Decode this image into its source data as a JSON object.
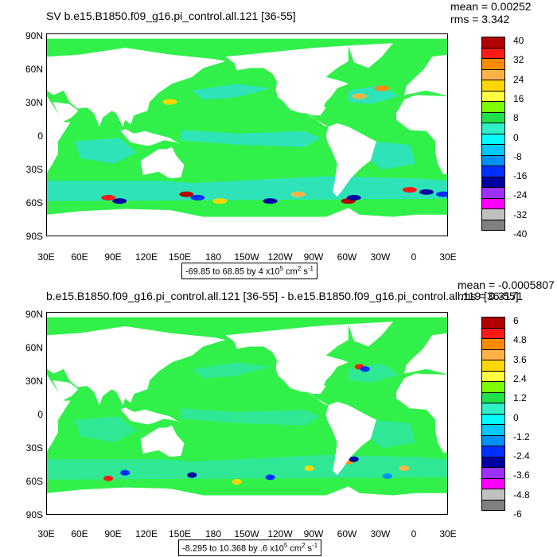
{
  "panels": [
    {
      "title": "SV b.e15.B1850.f09_g16.pi_control.all.121 [36-55]",
      "mean_label": "mean = 0.00252",
      "rms_label": "rms = 3.342",
      "range_prefix": "-69.85 to 68.85 by 4 x10",
      "range_units": "cm",
      "range_exp": "5",
      "range_units_exp": "2",
      "range_tail": "s",
      "range_tail_exp": "-1",
      "colorbar_labels": [
        "40",
        "32",
        "24",
        "16",
        "8",
        "0",
        "-8",
        "-16",
        "-24",
        "-32",
        "-40"
      ]
    },
    {
      "title": "b.e15.B1850.f09_g16.pi_control.all.121 [36-55] - b.e15.B1850.f09_g16.pi_control.all.119 [36-55]",
      "mean_label": "mean = -0.0005807",
      "rms_label": "rms = 0.3171",
      "range_prefix": "-8.295 to 10.368 by .6 x10",
      "range_units": "cm",
      "range_exp": "5",
      "range_units_exp": "2",
      "range_tail": "s",
      "range_tail_exp": "-1",
      "colorbar_labels": [
        "6",
        "4.8",
        "3.6",
        "2.4",
        "1.2",
        "0",
        "-1.2",
        "-2.4",
        "-3.6",
        "-4.8",
        "-6"
      ]
    }
  ],
  "lat_labels": [
    "90N",
    "60N",
    "30N",
    "0",
    "30S",
    "60S",
    "90S"
  ],
  "lon_labels": [
    "30E",
    "60E",
    "90E",
    "120E",
    "150E",
    "180",
    "150W",
    "120W",
    "90W",
    "60W",
    "30W",
    "0",
    "30E"
  ],
  "colors": {
    "ocean_main": "#31f04a",
    "ocean_alt": "#2fe0d4",
    "land": "#ffffff",
    "palette": [
      "#b30000",
      "#ff1a1a",
      "#ff8c00",
      "#ffb347",
      "#ffd700",
      "#ffff40",
      "#7cfc00",
      "#22e04a",
      "#30f0c8",
      "#00ffff",
      "#00c8ff",
      "#0090ff",
      "#0030ff",
      "#0000a0",
      "#9b30ff",
      "#ff00ff",
      "#c0c0c0",
      "#808080"
    ]
  }
}
